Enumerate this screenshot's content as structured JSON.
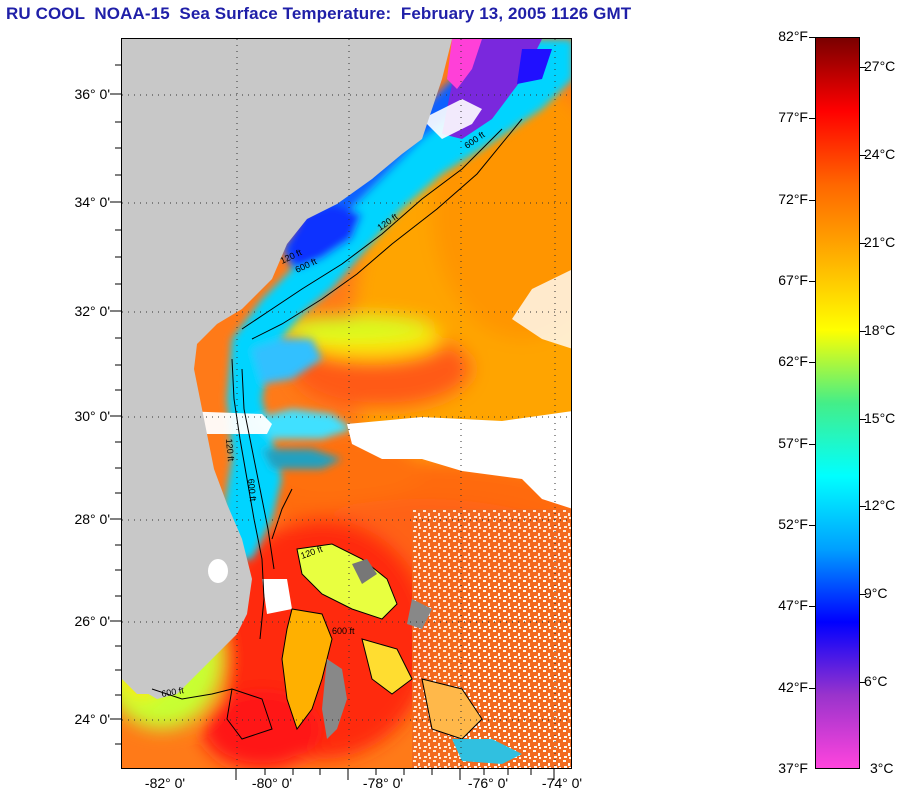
{
  "title": "RU COOL  NOAA-15  Sea Surface Temperature:  February 13, 2005 1126 GMT",
  "map": {
    "lat_labels": [
      "36° 0'",
      "34° 0'",
      "32° 0'",
      "30° 0'",
      "28° 0'",
      "26° 0'",
      "24° 0'"
    ],
    "lon_labels": [
      "-82° 0'",
      "-80° 0'",
      "-78° 0'",
      "-76° 0'",
      "-74° 0'"
    ],
    "contour_labels": [
      "120 ft",
      "600 ft",
      "120 ft",
      "600 ft",
      "120 ft",
      "600 ft",
      "120 ft",
      "600 ft",
      "600 ft"
    ],
    "land_color": "#c8c8c8",
    "cloud_color": "#ffffff"
  },
  "colorbar": {
    "fahrenheit_labels": [
      "82°F",
      "77°F",
      "72°F",
      "67°F",
      "62°F",
      "57°F",
      "52°F",
      "47°F",
      "42°F",
      "37°F"
    ],
    "celsius_labels": [
      "27°C",
      "24°C",
      "21°C",
      "18°C",
      "15°C",
      "12°C",
      "9°C",
      "6°C",
      "3°C"
    ],
    "fahrenheit_values": [
      82,
      77,
      72,
      67,
      62,
      57,
      52,
      47,
      42,
      37
    ],
    "celsius_values": [
      27,
      24,
      21,
      18,
      15,
      12,
      9,
      6,
      3
    ],
    "range_f": [
      37,
      82
    ],
    "colors": [
      "#ff44dd",
      "#9933cc",
      "#0000ff",
      "#00a0ff",
      "#00ffff",
      "#44ee88",
      "#ffff00",
      "#ffb000",
      "#ff6600",
      "#ff0000",
      "#7a0000"
    ]
  }
}
